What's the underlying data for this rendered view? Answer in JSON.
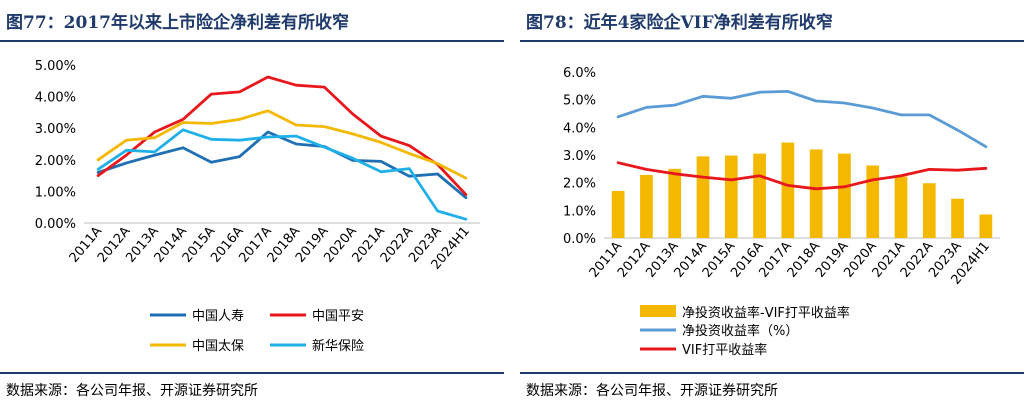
{
  "chart_data": [
    {
      "type": "line",
      "title": "图77：2017年以来上市险企净利差有所收窄",
      "source": "数据来源：各公司年报、开源证券研究所",
      "categories": [
        "2011A",
        "2012A",
        "2013A",
        "2014A",
        "2015A",
        "2016A",
        "2017A",
        "2018A",
        "2019A",
        "2020A",
        "2021A",
        "2022A",
        "2023A",
        "2024H1"
      ],
      "yticks": [
        "0.00%",
        "1.00%",
        "2.00%",
        "3.00%",
        "4.00%",
        "5.00%"
      ],
      "ylim": [
        0,
        5
      ],
      "legend_placement": "bottom",
      "series": [
        {
          "name": "中国人寿",
          "color": "#1f6fb5",
          "values": [
            1.6,
            1.9,
            2.15,
            2.38,
            1.92,
            2.1,
            2.88,
            2.5,
            2.42,
            1.98,
            1.95,
            1.48,
            1.55,
            0.8
          ]
        },
        {
          "name": "中国平安",
          "color": "#e8171b",
          "values": [
            1.5,
            2.15,
            2.88,
            3.28,
            4.08,
            4.15,
            4.62,
            4.36,
            4.3,
            3.45,
            2.75,
            2.45,
            1.85,
            0.9
          ]
        },
        {
          "name": "中国太保",
          "color": "#f5b800",
          "values": [
            2.0,
            2.62,
            2.7,
            3.18,
            3.15,
            3.28,
            3.55,
            3.1,
            3.05,
            2.82,
            2.55,
            2.2,
            1.88,
            1.42
          ]
        },
        {
          "name": "新华保险",
          "color": "#1fb0ea",
          "values": [
            1.7,
            2.3,
            2.25,
            2.95,
            2.65,
            2.62,
            2.72,
            2.75,
            2.4,
            2.05,
            1.62,
            1.72,
            0.38,
            0.12
          ]
        }
      ]
    },
    {
      "type": "bar",
      "title": "图78：近年4家险企VIF净利差有所收窄",
      "source": "数据来源：各公司年报、开源证券研究所",
      "categories": [
        "2011A",
        "2012A",
        "2013A",
        "2014A",
        "2015A",
        "2016A",
        "2017A",
        "2018A",
        "2019A",
        "2020A",
        "2021A",
        "2022A",
        "2023A",
        "2024H1"
      ],
      "yticks": [
        "0.0%",
        "1.0%",
        "2.0%",
        "3.0%",
        "4.0%",
        "5.0%",
        "6.0%"
      ],
      "ylim": [
        0,
        6
      ],
      "legend_placement": "bottom",
      "series": [
        {
          "name": "净投资收益率-VIF打平收益率",
          "kind": "bar",
          "color": "#f5b800",
          "values": [
            1.7,
            2.28,
            2.5,
            2.95,
            2.98,
            3.05,
            3.45,
            3.2,
            3.05,
            2.62,
            2.22,
            1.98,
            1.42,
            0.85
          ]
        },
        {
          "name": "净投资收益率（%）",
          "kind": "line",
          "color": "#5b9bd5",
          "values": [
            4.38,
            4.72,
            4.8,
            5.12,
            5.05,
            5.27,
            5.3,
            4.95,
            4.88,
            4.7,
            4.45,
            4.45,
            3.9,
            3.3
          ]
        },
        {
          "name": "VIF打平收益率",
          "kind": "line",
          "color": "#e8171b",
          "values": [
            2.72,
            2.48,
            2.32,
            2.2,
            2.1,
            2.25,
            1.9,
            1.78,
            1.85,
            2.1,
            2.25,
            2.48,
            2.45,
            2.52
          ]
        }
      ]
    }
  ]
}
